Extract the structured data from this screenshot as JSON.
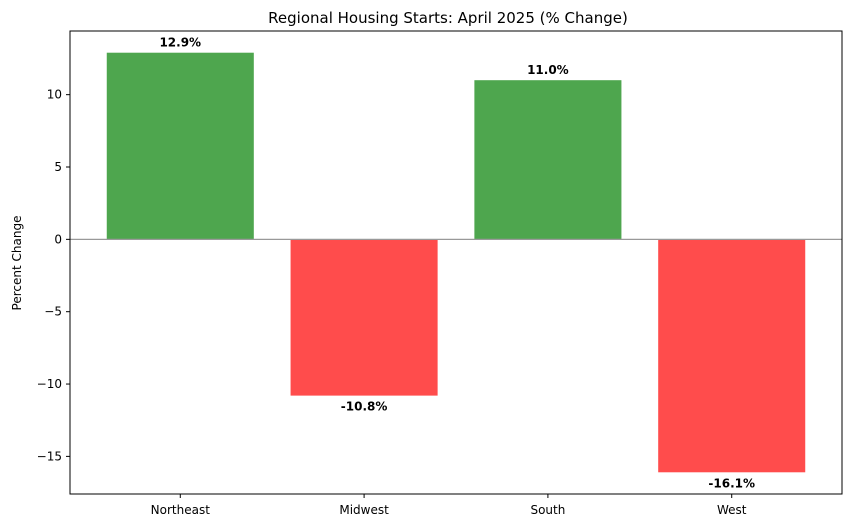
{
  "chart_data": {
    "type": "bar",
    "title": "Regional Housing Starts: April 2025 (% Change)",
    "xlabel": "",
    "ylabel": "Percent Change",
    "categories": [
      "Northeast",
      "Midwest",
      "South",
      "West"
    ],
    "values": [
      12.9,
      -10.8,
      11.0,
      -16.1
    ],
    "value_labels": [
      "12.9%",
      "-10.8%",
      "11.0%",
      "-16.1%"
    ],
    "ylim": [
      -17.6,
      14.4
    ],
    "yticks": [
      -15,
      -10,
      -5,
      0,
      5,
      10
    ],
    "ytick_labels": [
      "−15",
      "−10",
      "−5",
      "0",
      "5",
      "10"
    ],
    "grid": false,
    "zero_line": true,
    "colors": {
      "positive": "#4ea64e",
      "negative": "#ff4c4c",
      "zero_line": "#999999",
      "axes": "#000000"
    }
  }
}
